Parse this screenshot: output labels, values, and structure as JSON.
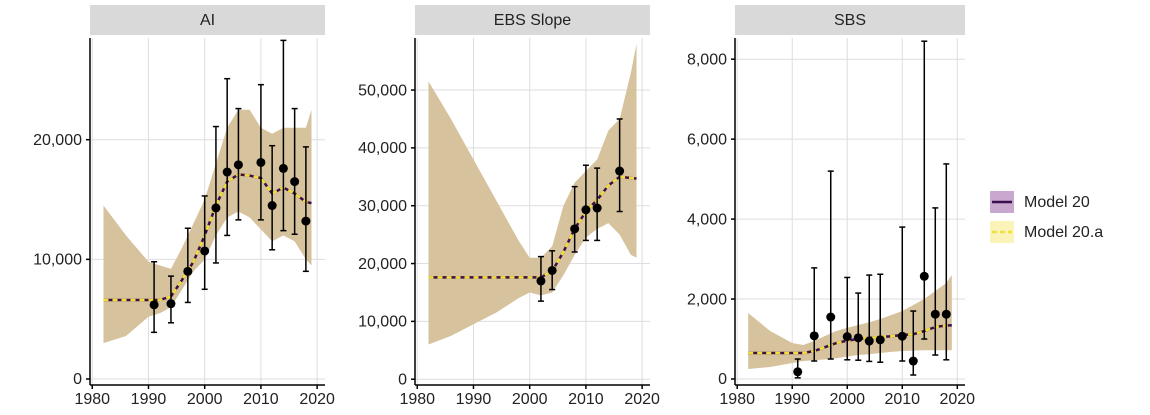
{
  "chart_data": [
    {
      "type": "line",
      "title": "AI",
      "x": [
        1982,
        1986,
        1990,
        1992,
        1994,
        1996,
        1998,
        2000,
        2002,
        2004,
        2006,
        2008,
        2010,
        2012,
        2014,
        2016,
        2018,
        2019
      ],
      "series": [
        {
          "values": [
            6600,
            6600,
            6600,
            6600,
            6900,
            8300,
            9800,
            12000,
            14500,
            16500,
            17100,
            17000,
            16800,
            15500,
            16000,
            15500,
            14800,
            14700
          ]
        },
        {
          "values": [
            6600,
            6600,
            6600,
            6600,
            6900,
            8300,
            9800,
            12000,
            14500,
            16500,
            17100,
            17000,
            16800,
            15500,
            16000,
            15500,
            14800,
            14700
          ]
        }
      ],
      "band": {
        "color": "#d6c29d",
        "lower": [
          3000,
          3600,
          5200,
          5500,
          6000,
          7500,
          9000,
          10000,
          12000,
          13500,
          14000,
          13500,
          12500,
          11500,
          12000,
          11500,
          10000,
          9500
        ],
        "upper": [
          14500,
          12000,
          9800,
          9500,
          9200,
          11000,
          13000,
          15000,
          18000,
          21000,
          22500,
          22500,
          21000,
          20500,
          21000,
          21000,
          21000,
          22500
        ]
      },
      "points": {
        "color": "#000000",
        "x": [
          1991,
          1994,
          1997,
          2000,
          2002,
          2004,
          2006,
          2010,
          2012,
          2014,
          2016,
          2018
        ],
        "values": [
          6200,
          6300,
          9000,
          10700,
          14300,
          17300,
          17900,
          18100,
          14500,
          17600,
          16500,
          13200
        ],
        "lower": [
          3900,
          4700,
          6400,
          7500,
          9700,
          12000,
          13300,
          13300,
          10800,
          12400,
          12100,
          9000
        ],
        "upper": [
          9800,
          8600,
          12600,
          15300,
          21100,
          25100,
          22600,
          24600,
          19500,
          28300,
          22600,
          19400
        ]
      },
      "xlim": [
        1979.6,
        2021.4
      ],
      "xticks": [
        1980,
        1990,
        2000,
        2010,
        2020
      ],
      "ylim": [
        -500,
        28500
      ],
      "yticks": [
        0,
        {
          "value": 10000,
          "label": "10,000"
        },
        {
          "value": 20000,
          "label": "20,000"
        }
      ],
      "grid": true
    },
    {
      "type": "line",
      "title": "EBS Slope",
      "x": [
        1982,
        1986,
        1990,
        1994,
        1998,
        2000,
        2002,
        2004,
        2006,
        2008,
        2010,
        2012,
        2014,
        2016,
        2018,
        2019
      ],
      "series": [
        {
          "values": [
            17600,
            17600,
            17600,
            17600,
            17600,
            17600,
            17600,
            18700,
            22000,
            26000,
            29000,
            31000,
            33500,
            35000,
            34800,
            34700
          ]
        },
        {
          "values": [
            17600,
            17600,
            17600,
            17600,
            17600,
            17600,
            17600,
            18700,
            22000,
            26000,
            29000,
            31000,
            33500,
            35000,
            34800,
            34700
          ]
        }
      ],
      "band": {
        "color": "#d6c29d",
        "lower": [
          6000,
          7500,
          9500,
          11500,
          14000,
          15000,
          14500,
          15000,
          18000,
          21500,
          24500,
          26000,
          27000,
          25000,
          21500,
          21000
        ],
        "upper": [
          51500,
          45000,
          38000,
          31000,
          24000,
          21000,
          21000,
          23000,
          30000,
          34000,
          36000,
          38000,
          43000,
          45000,
          53000,
          58000
        ]
      },
      "points": {
        "color": "#000000",
        "x": [
          2002,
          2004,
          2008,
          2010,
          2012,
          2016
        ],
        "values": [
          17000,
          18800,
          26000,
          29300,
          29600,
          36000
        ],
        "lower": [
          13500,
          15500,
          22000,
          24000,
          24000,
          29000
        ],
        "upper": [
          21200,
          22200,
          33300,
          37000,
          36500,
          45000
        ]
      },
      "xlim": [
        1979.6,
        2021.4
      ],
      "xticks": [
        1980,
        1990,
        2000,
        2010,
        2020
      ],
      "ylim": [
        -1000,
        59000
      ],
      "yticks": [
        0,
        {
          "value": 10000,
          "label": "10,000"
        },
        {
          "value": 20000,
          "label": "20,000"
        },
        {
          "value": 30000,
          "label": "30,000"
        },
        {
          "value": 40000,
          "label": "40,000"
        },
        {
          "value": 50000,
          "label": "50,000"
        }
      ],
      "grid": true
    },
    {
      "type": "line",
      "title": "SBS",
      "x": [
        1982,
        1986,
        1990,
        1992,
        1994,
        1996,
        1998,
        2000,
        2002,
        2004,
        2006,
        2008,
        2010,
        2012,
        2014,
        2016,
        2018,
        2019
      ],
      "series": [
        {
          "values": [
            650,
            650,
            650,
            650,
            700,
            800,
            900,
            960,
            1000,
            1030,
            1050,
            1070,
            1100,
            1120,
            1200,
            1300,
            1340,
            1340
          ]
        },
        {
          "values": [
            650,
            650,
            650,
            650,
            700,
            800,
            900,
            960,
            1000,
            1030,
            1050,
            1070,
            1100,
            1120,
            1200,
            1300,
            1340,
            1340
          ]
        }
      ],
      "band": {
        "color": "#d6c29d",
        "lower": [
          250,
          300,
          400,
          450,
          470,
          490,
          520,
          560,
          600,
          620,
          650,
          680,
          700,
          710,
          720,
          720,
          720,
          720
        ],
        "upper": [
          1650,
          1200,
          900,
          850,
          950,
          1080,
          1200,
          1280,
          1350,
          1420,
          1500,
          1600,
          1700,
          1850,
          2000,
          2200,
          2400,
          2600
        ]
      },
      "points": {
        "color": "#000000",
        "x": [
          1991,
          1994,
          1997,
          2000,
          2002,
          2004,
          2006,
          2010,
          2012,
          2014,
          2016,
          2018
        ],
        "values": [
          180,
          1080,
          1550,
          1060,
          1030,
          950,
          980,
          1070,
          450,
          2570,
          1620,
          1620
        ],
        "lower": [
          30,
          450,
          500,
          480,
          470,
          440,
          420,
          450,
          100,
          1000,
          600,
          480
        ],
        "upper": [
          500,
          2780,
          5200,
          2540,
          2150,
          2600,
          2620,
          3800,
          1700,
          8450,
          4280,
          5380
        ]
      },
      "xlim": [
        1979.6,
        2021.4
      ],
      "xticks": [
        1980,
        1990,
        2000,
        2010,
        2020
      ],
      "ylim": [
        -150,
        8530
      ],
      "yticks": [
        0,
        {
          "value": 2000,
          "label": "2,000"
        },
        {
          "value": 4000,
          "label": "4,000"
        },
        {
          "value": 6000,
          "label": "6,000"
        },
        {
          "value": 8000,
          "label": "8,000"
        }
      ],
      "grid": true
    }
  ],
  "legend": {
    "position": "right",
    "entries": [
      {
        "name": "Model 20",
        "color": "#3d0e4e",
        "fill": "#c8a8cf",
        "dash": false
      },
      {
        "name": "Model 20.a",
        "color": "#f2e03a",
        "fill": "#fbf3b8",
        "dash": true
      }
    ]
  }
}
